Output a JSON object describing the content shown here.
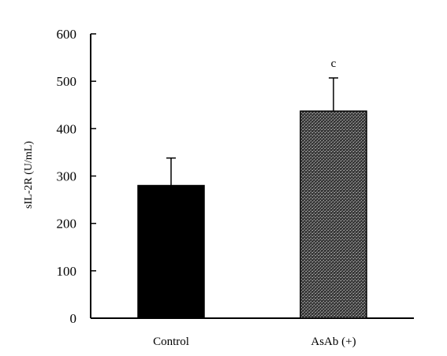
{
  "chart_data": {
    "type": "bar",
    "title": "",
    "xlabel": "",
    "ylabel": "sIL-2R (U/mL)",
    "ylim": [
      0,
      600
    ],
    "yticks": [
      0,
      100,
      200,
      300,
      400,
      500,
      600
    ],
    "categories": [
      "Control",
      "AsAb (+)"
    ],
    "values": [
      280,
      437
    ],
    "error_bars": [
      58,
      70
    ],
    "annotations": [
      "",
      "c"
    ],
    "bar_styles": [
      "solid",
      "dotted-pattern"
    ],
    "colors": {
      "solid": "#000000",
      "pattern_dark": "#222222",
      "pattern_light": "#9a9a9a"
    },
    "grid": false,
    "legend": "none"
  }
}
